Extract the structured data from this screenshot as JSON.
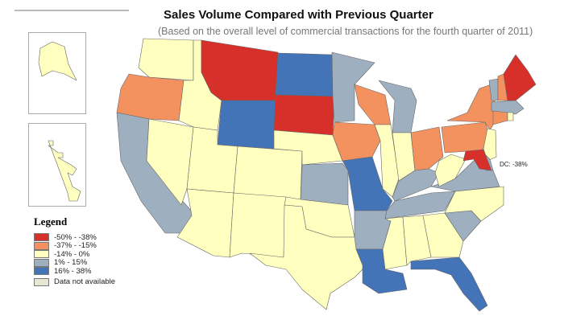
{
  "title": "Sales Volume Compared with Previous Quarter",
  "subtitle": "(Based on the overall level of commercial transactions for the fourth quarter of 2011)",
  "legend": {
    "title": "Legend",
    "items": [
      {
        "label": "-50% - -38%",
        "color": "#d7302a",
        "key": "c1"
      },
      {
        "label": "-37% - -15%",
        "color": "#f4925f",
        "key": "c2"
      },
      {
        "label": "-14% - 0%",
        "color": "#ffffbf",
        "key": "c3"
      },
      {
        "label": "1% - 15%",
        "color": "#9eafbf",
        "key": "c4"
      },
      {
        "label": "16% - 38%",
        "color": "#4474b8",
        "key": "c5"
      },
      {
        "label": "Data not available",
        "color": "#e8e6d4",
        "key": "na"
      }
    ]
  },
  "annotation": "DC: -38%",
  "states": {
    "WA": "c3",
    "OR": "c2",
    "CA": "c4",
    "ID": "c3",
    "NV": "c3",
    "MT": "c1",
    "WY": "c5",
    "UT": "c3",
    "AZ": "c3",
    "CO": "c3",
    "NM": "c3",
    "ND": "c5",
    "SD": "c1",
    "NE": "c3",
    "KS": "c4",
    "OK": "c3",
    "TX": "c3",
    "MN": "c4",
    "IA": "c2",
    "MO": "c5",
    "AR": "c4",
    "LA": "c5",
    "WI": "c2",
    "IL": "c3",
    "MI": "c4",
    "IN": "c3",
    "OH": "c2",
    "KY": "c4",
    "TN": "c4",
    "MS": "c3",
    "AL": "c3",
    "GA": "c3",
    "FL": "c5",
    "SC": "c4",
    "NC": "c3",
    "VA": "c4",
    "WV": "c3",
    "PA": "c2",
    "NY": "c2",
    "VT": "c4",
    "NH": "c2",
    "ME": "c1",
    "MA": "c4",
    "CT": "c2",
    "RI": "c3",
    "NJ": "c3",
    "DE": "c4",
    "MD": "c1",
    "AK": "c3",
    "HI": "c3"
  }
}
